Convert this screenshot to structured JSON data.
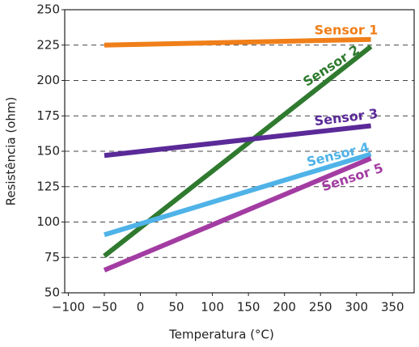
{
  "chart_data": {
    "type": "line",
    "x_label": "Temperatura (°C)",
    "y_label": "Resistência (ohm)",
    "x": [
      -50,
      320
    ],
    "series": [
      {
        "name": "Sensor 1",
        "color": "#f07f1a",
        "values": [
          225,
          229
        ]
      },
      {
        "name": "Sensor 2",
        "color": "#2f7a2f",
        "values": [
          76,
          224
        ]
      },
      {
        "name": "Sensor 3",
        "color": "#5a2a98",
        "values": [
          147,
          168
        ]
      },
      {
        "name": "Sensor 4",
        "color": "#4fb3e8",
        "values": [
          91,
          148
        ]
      },
      {
        "name": "Sensor 5",
        "color": "#a33ca2",
        "values": [
          66,
          145
        ]
      }
    ],
    "xlim": [
      -105,
      380
    ],
    "ylim": [
      50,
      250
    ],
    "xticks": [
      {
        "value": -100,
        "label": "−100"
      },
      {
        "value": -50,
        "label": "−50"
      },
      0,
      50,
      100,
      150,
      200,
      250,
      300,
      350
    ],
    "yticks": [
      50,
      75,
      100,
      125,
      150,
      175,
      200,
      225,
      250
    ],
    "grid": true
  }
}
